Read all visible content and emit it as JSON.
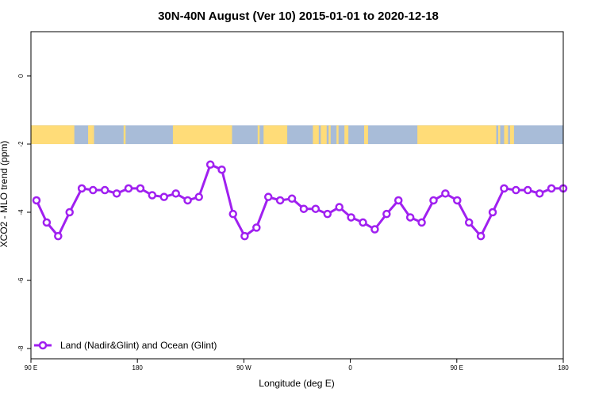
{
  "chart_data": {
    "type": "line",
    "title": "30N-40N August (Ver 10)   2015-01-01 to 2020-12-18",
    "xlabel": "Longitude (deg E)",
    "ylabel": "XCO2 - MLO trend (ppm)",
    "xlim": [
      -90,
      180
    ],
    "ylim": [
      -8.3,
      1.3
    ],
    "x_ticks": [
      {
        "value": -90,
        "label": "90 E"
      },
      {
        "value": -36,
        "label": "180"
      },
      {
        "value": 18,
        "label": "90 W"
      },
      {
        "value": 72,
        "label": "0"
      },
      {
        "value": 126,
        "label": "90 E"
      },
      {
        "value": 180,
        "label": "180"
      }
    ],
    "y_ticks": [
      {
        "value": 0,
        "label": "0"
      },
      {
        "value": -2,
        "label": "-2"
      },
      {
        "value": -4,
        "label": "-4"
      },
      {
        "value": -6,
        "label": "-6"
      },
      {
        "value": -8,
        "label": "-8"
      }
    ],
    "grid": false,
    "legend_position": "bottom-left",
    "land_ocean_strip": {
      "y_range": [
        -2.0,
        -1.45
      ],
      "land_color": "#ffdc78",
      "ocean_color": "#a8bcd8",
      "land_segments": [
        [
          -90,
          -68
        ],
        [
          -61,
          -59
        ],
        [
          -59,
          -58
        ],
        [
          -43,
          -42
        ],
        [
          -18,
          12
        ],
        [
          25,
          26
        ],
        [
          28,
          40
        ],
        [
          53,
          56
        ],
        [
          57,
          60
        ],
        [
          61,
          62
        ],
        [
          65,
          66
        ],
        [
          69,
          71
        ],
        [
          79,
          81
        ],
        [
          106,
          146
        ],
        [
          147,
          148
        ],
        [
          150,
          152
        ],
        [
          153,
          155
        ]
      ]
    },
    "series": [
      {
        "name": "Land (Nadir&Glint) and Ocean (Glint)",
        "color": "#a020f0",
        "x": [
          -87.2,
          -82,
          -76.2,
          -70.4,
          -64.2,
          -58.5,
          -52.5,
          -46.5,
          -40.5,
          -34.5,
          -28.5,
          -22.5,
          -16.5,
          -10.5,
          -4.8,
          1,
          6.8,
          12.5,
          18.4,
          24.4,
          30.4,
          36.4,
          42.4,
          48.4,
          54.4,
          60.4,
          66.4,
          72.4,
          78.4,
          84.4,
          90.4,
          96.4,
          102.4,
          108.2,
          114.2,
          120.2,
          126.2,
          132.2,
          138.2,
          144.2,
          150,
          156,
          162,
          168,
          174,
          180
        ],
        "y": [
          -3.65,
          -4.3,
          -4.7,
          -4.0,
          -3.3,
          -3.35,
          -3.35,
          -3.45,
          -3.3,
          -3.3,
          -3.5,
          -3.55,
          -3.45,
          -3.65,
          -3.55,
          -2.6,
          -2.75,
          -4.05,
          -4.7,
          -4.45,
          -3.55,
          -3.65,
          -3.6,
          -3.9,
          -3.9,
          -4.05,
          -3.85,
          -4.15,
          -4.3,
          -4.5,
          -4.05,
          -3.65,
          -4.15,
          -4.3,
          -3.65,
          -3.45,
          -3.65,
          -4.3,
          -4.7,
          -4.0,
          -3.3,
          -3.35,
          -3.35,
          -3.45,
          -3.3,
          -3.3
        ]
      }
    ]
  }
}
